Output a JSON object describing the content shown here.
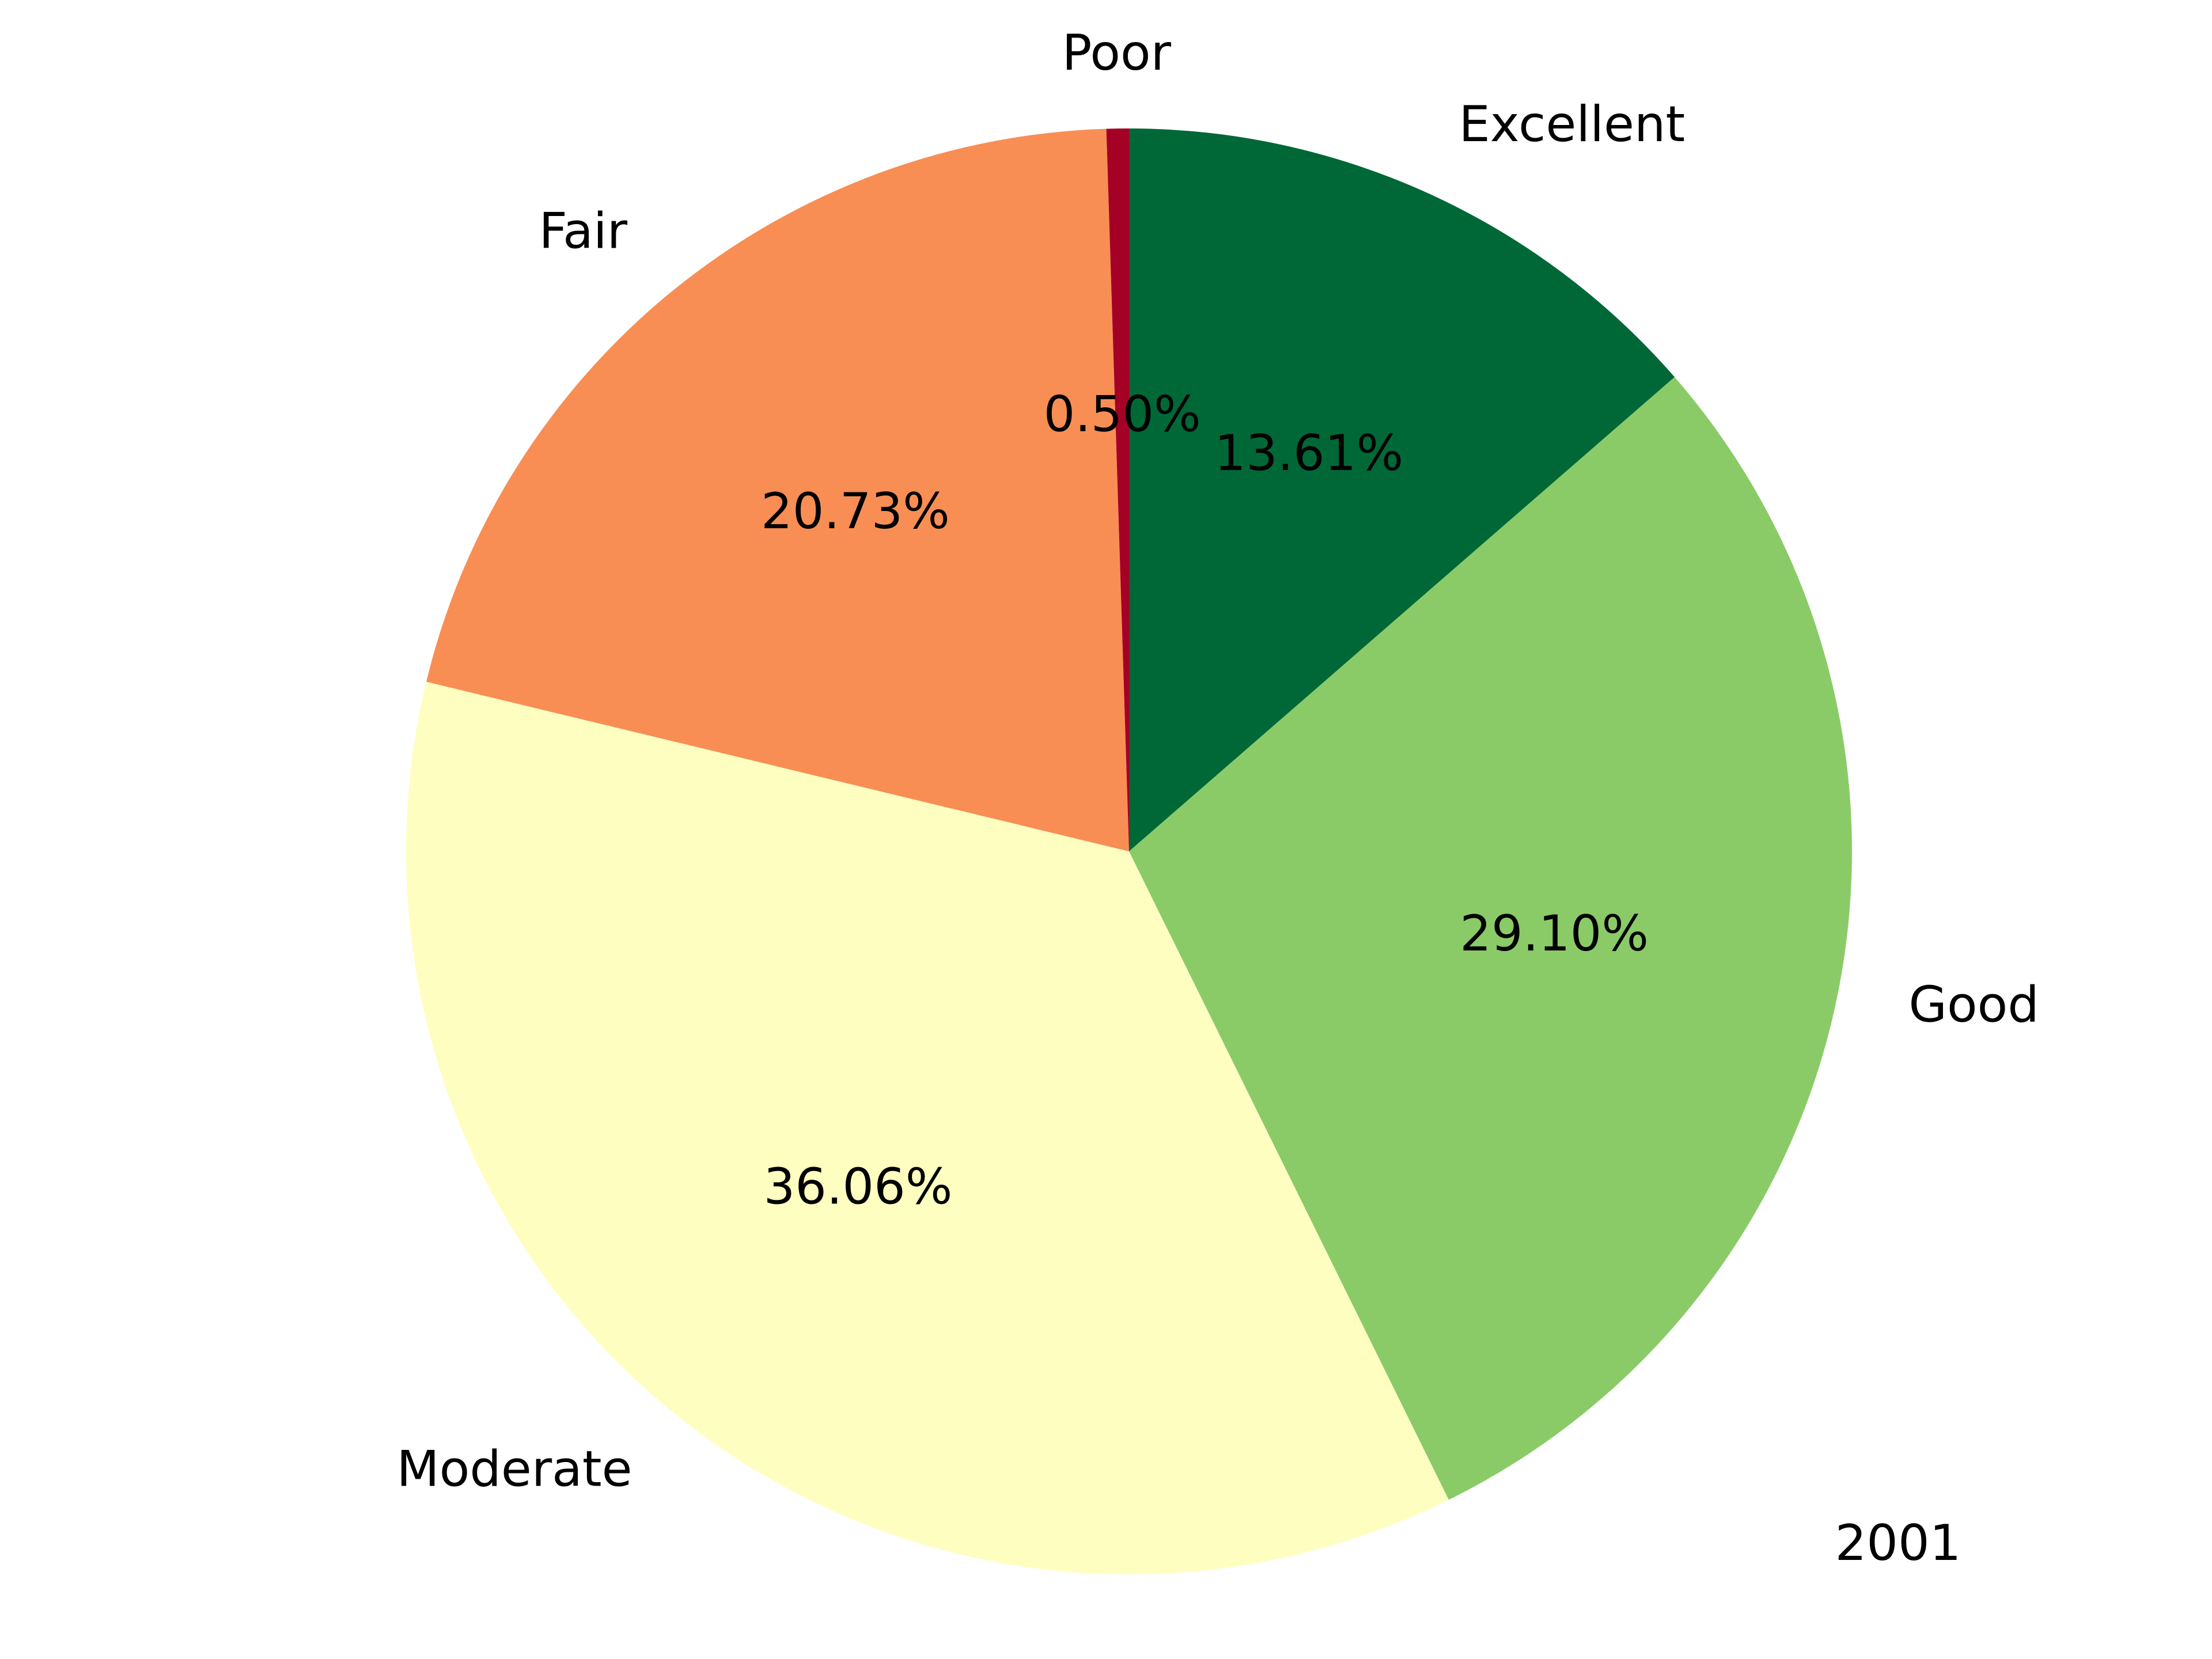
{
  "chart_data": {
    "type": "pie",
    "title": "",
    "annotation": "2001",
    "start_angle_deg": 90,
    "direction": "clockwise",
    "slices": [
      {
        "label": "Excellent",
        "value": 13.61,
        "pct_text": "13.61%",
        "color": "#006837"
      },
      {
        "label": "Good",
        "value": 29.1,
        "pct_text": "29.10%",
        "color": "#8ACB68"
      },
      {
        "label": "Moderate",
        "value": 36.06,
        "pct_text": "36.06%",
        "color": "#FEFEC0"
      },
      {
        "label": "Fair",
        "value": 20.73,
        "pct_text": "20.73%",
        "color": "#F88E54"
      },
      {
        "label": "Poor",
        "value": 0.5,
        "pct_text": "0.50%",
        "color": "#A50026"
      }
    ]
  }
}
